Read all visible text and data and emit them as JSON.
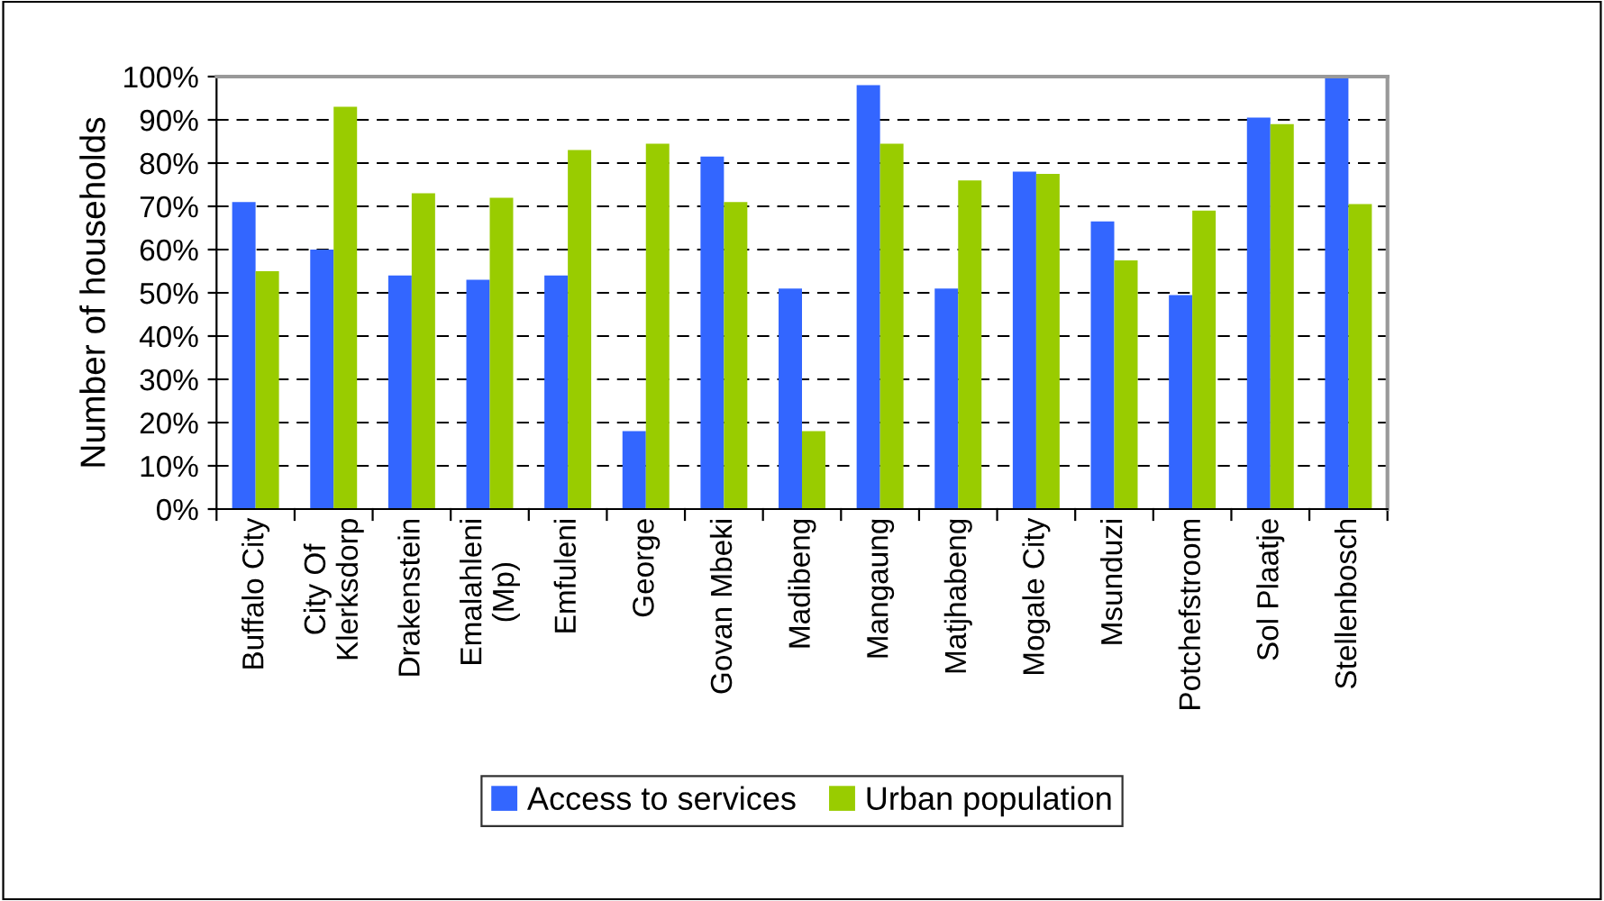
{
  "chart_data": {
    "type": "bar",
    "ylabel": "Number of households",
    "categories": [
      "Buffalo City",
      "City Of\nKlerksdorp",
      "Drakenstein",
      "Emalahleni\n(Mp)",
      "Emfuleni",
      "George",
      "Govan Mbeki",
      "Madibeng",
      "Mangaung",
      "Matjhabeng",
      "Mogale City",
      "Msunduzi",
      "Potchefstroom",
      "Sol Plaatje",
      "Stellenbosch"
    ],
    "series": [
      {
        "name": "Access to services",
        "color": "#3366ff",
        "values": [
          71,
          60,
          54,
          53,
          54,
          18,
          81.5,
          51,
          98,
          51,
          78,
          66.5,
          49.5,
          90.5,
          100
        ]
      },
      {
        "name": "Urban population",
        "color": "#99cc00",
        "values": [
          55,
          93,
          73,
          72,
          83,
          84.5,
          71,
          18,
          84.5,
          76,
          77.5,
          57.5,
          69,
          89,
          70.5
        ]
      }
    ],
    "ylim": [
      0,
      100
    ],
    "yticks": [
      {
        "value": 0,
        "label": "0%"
      },
      {
        "value": 10,
        "label": "10%"
      },
      {
        "value": 20,
        "label": "20%"
      },
      {
        "value": 30,
        "label": "30%"
      },
      {
        "value": 40,
        "label": "40%"
      },
      {
        "value": 50,
        "label": "50%"
      },
      {
        "value": 60,
        "label": "60%"
      },
      {
        "value": 70,
        "label": "70%"
      },
      {
        "value": 80,
        "label": "80%"
      },
      {
        "value": 90,
        "label": "90%"
      },
      {
        "value": 100,
        "label": "100%"
      }
    ],
    "grid": "y",
    "legend": "bottom"
  }
}
